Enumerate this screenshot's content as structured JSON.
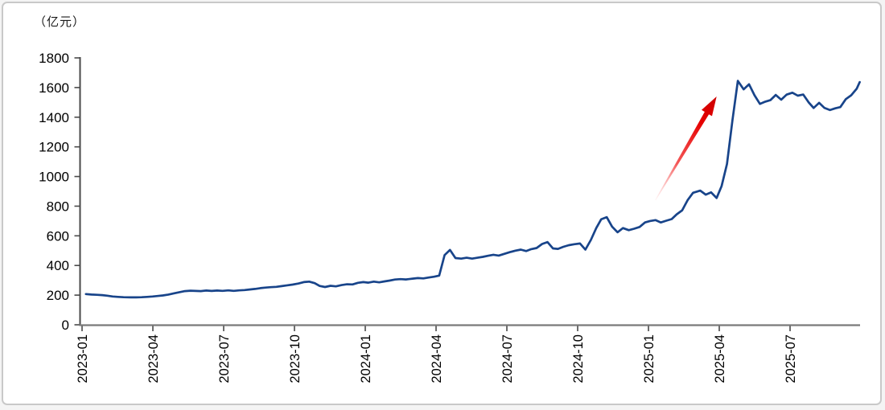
{
  "page": {
    "background": "#ffffff",
    "border_color": "#c9c9c9"
  },
  "chart_data": {
    "type": "line",
    "title": "",
    "unit_label": "（亿元）",
    "xlabel": "",
    "ylabel": "（亿元）",
    "ylim": [
      0,
      1800
    ],
    "y_tick_step": 200,
    "y_ticks": [
      0,
      200,
      400,
      600,
      800,
      1000,
      1200,
      1400,
      1600,
      1800
    ],
    "x_ticks": [
      "2023-01",
      "2023-04",
      "2023-07",
      "2023-10",
      "2024-01",
      "2024-04",
      "2024-07",
      "2024-10",
      "2025-01",
      "2025-04",
      "2025-07"
    ],
    "grid": false,
    "legend_position": "none",
    "axis_color": "#7a7a7a",
    "tick_label_color": "#000000",
    "series": [
      {
        "name": "value",
        "color": "#18448a",
        "points": [
          [
            "2023-01-06",
            207
          ],
          [
            "2023-01-13",
            204
          ],
          [
            "2023-01-20",
            202
          ],
          [
            "2023-01-27",
            200
          ],
          [
            "2023-02-03",
            196
          ],
          [
            "2023-02-10",
            191
          ],
          [
            "2023-02-17",
            188
          ],
          [
            "2023-02-24",
            186
          ],
          [
            "2023-03-03",
            185
          ],
          [
            "2023-03-10",
            185
          ],
          [
            "2023-03-17",
            186
          ],
          [
            "2023-03-24",
            188
          ],
          [
            "2023-03-31",
            191
          ],
          [
            "2023-04-07",
            194
          ],
          [
            "2023-04-14",
            198
          ],
          [
            "2023-04-21",
            204
          ],
          [
            "2023-04-28",
            212
          ],
          [
            "2023-05-05",
            220
          ],
          [
            "2023-05-12",
            227
          ],
          [
            "2023-05-19",
            230
          ],
          [
            "2023-05-26",
            228
          ],
          [
            "2023-06-02",
            227
          ],
          [
            "2023-06-09",
            231
          ],
          [
            "2023-06-16",
            228
          ],
          [
            "2023-06-23",
            231
          ],
          [
            "2023-06-30",
            229
          ],
          [
            "2023-07-07",
            232
          ],
          [
            "2023-07-14",
            229
          ],
          [
            "2023-07-21",
            232
          ],
          [
            "2023-07-28",
            234
          ],
          [
            "2023-08-04",
            238
          ],
          [
            "2023-08-11",
            242
          ],
          [
            "2023-08-18",
            247
          ],
          [
            "2023-08-25",
            251
          ],
          [
            "2023-09-01",
            254
          ],
          [
            "2023-09-08",
            256
          ],
          [
            "2023-09-15",
            261
          ],
          [
            "2023-09-22",
            266
          ],
          [
            "2023-09-29",
            271
          ],
          [
            "2023-10-06",
            278
          ],
          [
            "2023-10-13",
            288
          ],
          [
            "2023-10-20",
            291
          ],
          [
            "2023-10-27",
            281
          ],
          [
            "2023-11-03",
            262
          ],
          [
            "2023-11-10",
            255
          ],
          [
            "2023-11-17",
            263
          ],
          [
            "2023-11-24",
            259
          ],
          [
            "2023-12-01",
            268
          ],
          [
            "2023-12-08",
            273
          ],
          [
            "2023-12-15",
            272
          ],
          [
            "2023-12-22",
            283
          ],
          [
            "2023-12-29",
            288
          ],
          [
            "2024-01-05",
            284
          ],
          [
            "2024-01-12",
            291
          ],
          [
            "2024-01-19",
            286
          ],
          [
            "2024-01-26",
            293
          ],
          [
            "2024-02-02",
            298
          ],
          [
            "2024-02-09",
            305
          ],
          [
            "2024-02-16",
            308
          ],
          [
            "2024-02-23",
            306
          ],
          [
            "2024-03-01",
            311
          ],
          [
            "2024-03-08",
            315
          ],
          [
            "2024-03-15",
            313
          ],
          [
            "2024-03-22",
            319
          ],
          [
            "2024-03-29",
            324
          ],
          [
            "2024-04-05",
            332
          ],
          [
            "2024-04-12",
            470
          ],
          [
            "2024-04-19",
            505
          ],
          [
            "2024-04-26",
            450
          ],
          [
            "2024-05-03",
            446
          ],
          [
            "2024-05-10",
            452
          ],
          [
            "2024-05-17",
            446
          ],
          [
            "2024-05-24",
            452
          ],
          [
            "2024-05-31",
            458
          ],
          [
            "2024-06-07",
            465
          ],
          [
            "2024-06-14",
            472
          ],
          [
            "2024-06-21",
            467
          ],
          [
            "2024-06-28",
            478
          ],
          [
            "2024-07-05",
            490
          ],
          [
            "2024-07-12",
            500
          ],
          [
            "2024-07-19",
            507
          ],
          [
            "2024-07-26",
            497
          ],
          [
            "2024-08-02",
            510
          ],
          [
            "2024-08-09",
            518
          ],
          [
            "2024-08-16",
            545
          ],
          [
            "2024-08-23",
            558
          ],
          [
            "2024-08-30",
            515
          ],
          [
            "2024-09-06",
            512
          ],
          [
            "2024-09-13",
            526
          ],
          [
            "2024-09-20",
            537
          ],
          [
            "2024-09-27",
            543
          ],
          [
            "2024-10-04",
            548
          ],
          [
            "2024-10-11",
            507
          ],
          [
            "2024-10-18",
            572
          ],
          [
            "2024-10-25",
            652
          ],
          [
            "2024-11-01",
            712
          ],
          [
            "2024-11-08",
            726
          ],
          [
            "2024-11-15",
            662
          ],
          [
            "2024-11-22",
            624
          ],
          [
            "2024-11-29",
            652
          ],
          [
            "2024-12-06",
            638
          ],
          [
            "2024-12-13",
            648
          ],
          [
            "2024-12-20",
            660
          ],
          [
            "2024-12-27",
            690
          ],
          [
            "2025-01-03",
            700
          ],
          [
            "2025-01-10",
            706
          ],
          [
            "2025-01-17",
            690
          ],
          [
            "2025-01-24",
            702
          ],
          [
            "2025-01-31",
            713
          ],
          [
            "2025-02-07",
            745
          ],
          [
            "2025-02-14",
            772
          ],
          [
            "2025-02-21",
            840
          ],
          [
            "2025-02-28",
            890
          ],
          [
            "2025-03-07",
            905
          ],
          [
            "2025-03-14",
            878
          ],
          [
            "2025-03-21",
            893
          ],
          [
            "2025-03-28",
            855
          ],
          [
            "2025-04-04",
            935
          ],
          [
            "2025-04-11",
            1085
          ],
          [
            "2025-04-18",
            1380
          ],
          [
            "2025-04-25",
            1645
          ],
          [
            "2025-05-02",
            1588
          ],
          [
            "2025-05-09",
            1622
          ],
          [
            "2025-05-16",
            1548
          ],
          [
            "2025-05-23",
            1490
          ],
          [
            "2025-05-30",
            1505
          ],
          [
            "2025-06-06",
            1515
          ],
          [
            "2025-06-13",
            1550
          ],
          [
            "2025-06-20",
            1518
          ],
          [
            "2025-06-27",
            1552
          ],
          [
            "2025-07-04",
            1565
          ],
          [
            "2025-07-11",
            1545
          ],
          [
            "2025-07-18",
            1553
          ],
          [
            "2025-07-25",
            1500
          ],
          [
            "2025-08-01",
            1462
          ],
          [
            "2025-08-08",
            1497
          ],
          [
            "2025-08-15",
            1462
          ],
          [
            "2025-08-22",
            1448
          ],
          [
            "2025-08-29",
            1460
          ],
          [
            "2025-09-05",
            1468
          ],
          [
            "2025-09-12",
            1522
          ],
          [
            "2025-09-19",
            1548
          ],
          [
            "2025-09-26",
            1592
          ],
          [
            "2025-09-30",
            1637
          ]
        ]
      }
    ],
    "annotations": [
      {
        "type": "arrow",
        "color": "#e60000",
        "from": {
          "date": "2025-01-10",
          "value": 840
        },
        "to": {
          "date": "2025-03-28",
          "value": 1540
        }
      }
    ]
  }
}
